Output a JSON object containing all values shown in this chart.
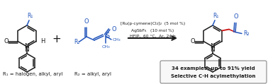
{
  "figsize": [
    3.78,
    1.19
  ],
  "dpi": 100,
  "bg_color": "#ffffff",
  "reagent_line1": "[Ru(p-cymene)Cl₂]₂  (5 mol %)",
  "reagent_line2": "AgSbF₆   (10 mol %)",
  "reagent_line3": "HFIP,  60 °C,  Ar, 24 h",
  "subtitle_r1": "R₁ = halogen, alkyl, aryl",
  "subtitle_r2": "R₂ = alkyl, aryl",
  "box_line1": "34 examples, up to 91% yield",
  "box_line2": "Selective C-H acylmethylation",
  "text_color": "#1a1a1a",
  "blue_color": "#2255bb",
  "red_color": "#cc1111",
  "box_bg": "#f8f8f8",
  "box_edge": "#888888"
}
